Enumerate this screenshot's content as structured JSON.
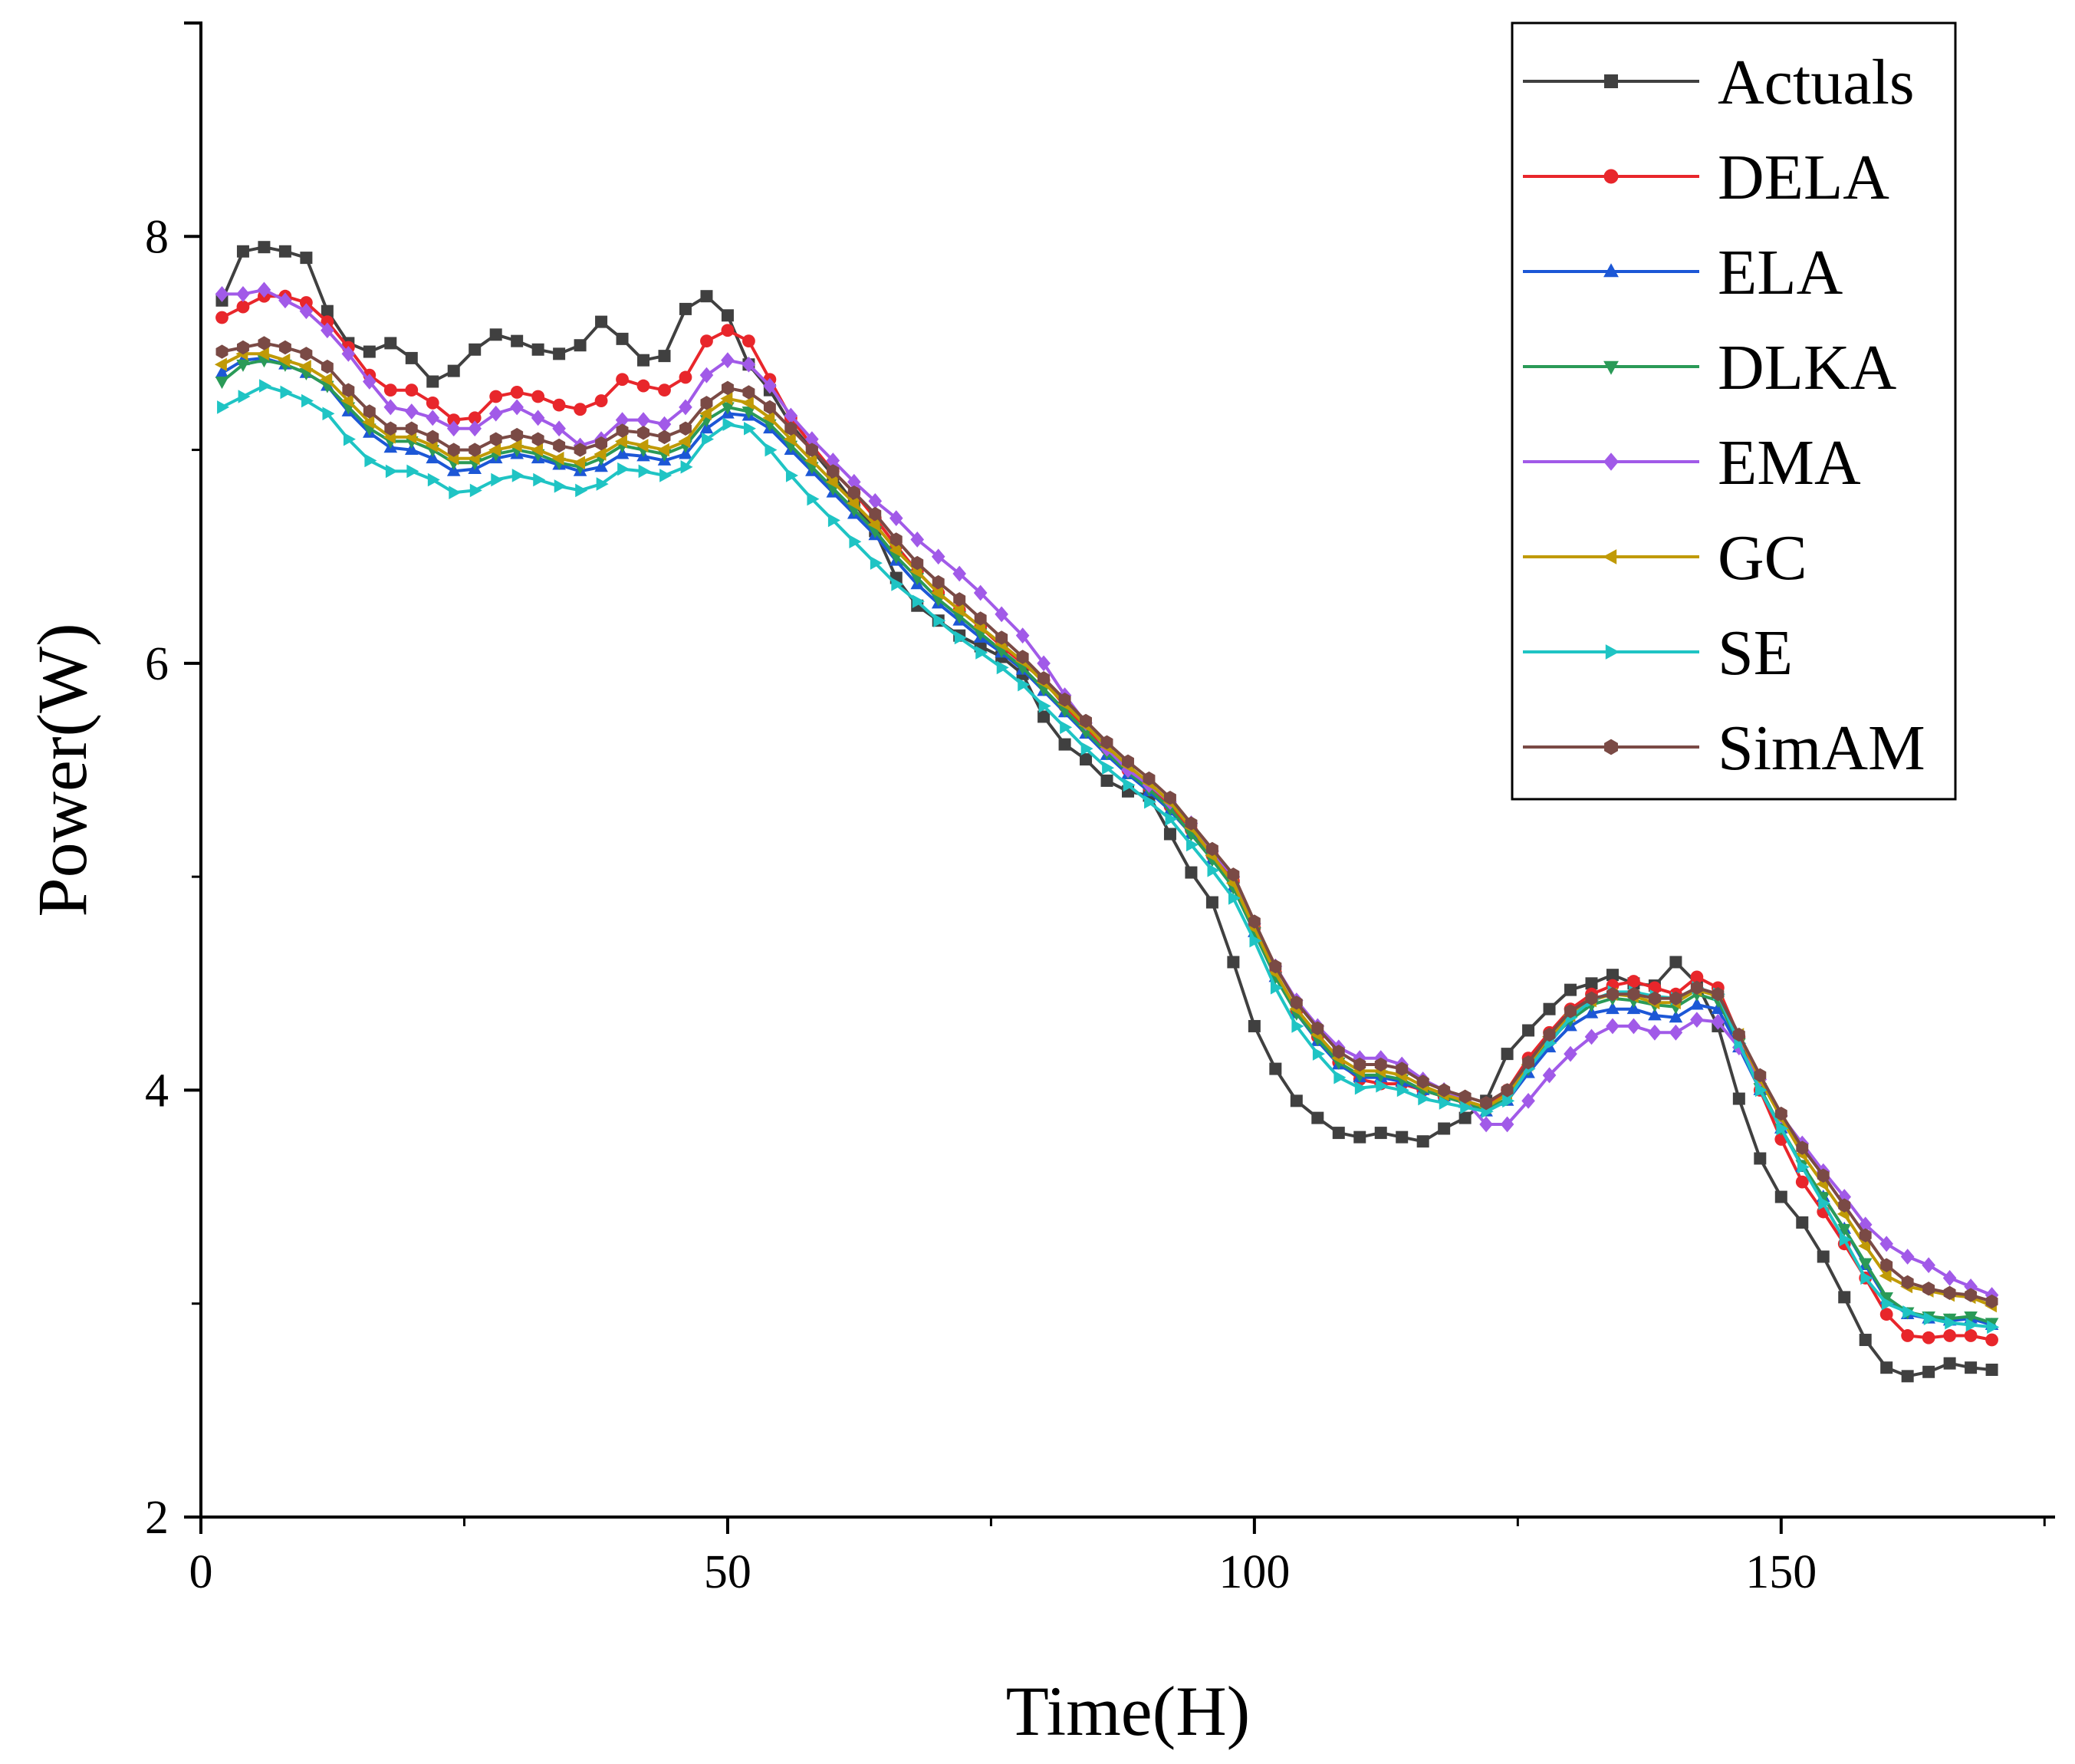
{
  "chart_data": {
    "type": "line",
    "title": "",
    "xlabel": "Time(H)",
    "ylabel": "Power(W)",
    "xlim": [
      0,
      176
    ],
    "ylim": [
      2,
      9
    ],
    "xticks": [
      0,
      50,
      100,
      150
    ],
    "xticks_minor": [
      25,
      75,
      125,
      175
    ],
    "yticks": [
      2,
      4,
      6,
      8
    ],
    "legend_position": "top-right",
    "grid": false,
    "x": [
      2,
      4,
      6,
      8,
      10,
      12,
      14,
      16,
      18,
      20,
      22,
      24,
      26,
      28,
      30,
      32,
      34,
      36,
      38,
      40,
      42,
      44,
      46,
      48,
      50,
      52,
      54,
      56,
      58,
      60,
      62,
      64,
      66,
      68,
      70,
      72,
      74,
      76,
      78,
      80,
      82,
      84,
      86,
      88,
      90,
      92,
      94,
      96,
      98,
      100,
      102,
      104,
      106,
      108,
      110,
      112,
      114,
      116,
      118,
      120,
      122,
      124,
      126,
      128,
      130,
      132,
      134,
      136,
      138,
      140,
      142,
      144,
      146,
      148,
      150,
      152,
      154,
      156,
      158,
      160,
      162,
      164,
      166,
      168,
      170
    ],
    "series": [
      {
        "name": "Actuals",
        "color": "#404040",
        "marker": "square",
        "values": [
          7.7,
          7.93,
          7.95,
          7.93,
          7.9,
          7.65,
          7.5,
          7.46,
          7.5,
          7.43,
          7.32,
          7.37,
          7.47,
          7.54,
          7.51,
          7.47,
          7.45,
          7.49,
          7.6,
          7.52,
          7.42,
          7.44,
          7.66,
          7.72,
          7.63,
          7.4,
          7.28,
          7.12,
          7.0,
          6.88,
          6.75,
          6.62,
          6.4,
          6.27,
          6.2,
          6.13,
          6.08,
          6.03,
          5.95,
          5.75,
          5.62,
          5.55,
          5.45,
          5.4,
          5.38,
          5.2,
          5.02,
          4.88,
          4.6,
          4.3,
          4.1,
          3.95,
          3.87,
          3.8,
          3.78,
          3.8,
          3.78,
          3.76,
          3.82,
          3.87,
          3.95,
          4.17,
          4.28,
          4.38,
          4.47,
          4.5,
          4.54,
          4.5,
          4.49,
          4.6,
          4.5,
          4.3,
          3.96,
          3.68,
          3.5,
          3.38,
          3.22,
          3.03,
          2.83,
          2.7,
          2.66,
          2.68,
          2.72,
          2.7,
          2.69
        ]
      },
      {
        "name": "DELA",
        "color": "#e8262b",
        "marker": "circle",
        "values": [
          7.62,
          7.67,
          7.72,
          7.72,
          7.69,
          7.6,
          7.48,
          7.35,
          7.28,
          7.28,
          7.22,
          7.14,
          7.15,
          7.25,
          7.27,
          7.25,
          7.21,
          7.19,
          7.23,
          7.33,
          7.3,
          7.28,
          7.34,
          7.51,
          7.56,
          7.51,
          7.33,
          7.15,
          7.02,
          6.9,
          6.8,
          6.68,
          6.55,
          6.43,
          6.33,
          6.25,
          6.17,
          6.08,
          6.0,
          5.92,
          5.8,
          5.7,
          5.6,
          5.5,
          5.42,
          5.33,
          5.22,
          5.1,
          4.98,
          4.76,
          4.55,
          4.37,
          4.25,
          4.13,
          4.05,
          4.03,
          4.03,
          4.0,
          3.97,
          3.95,
          3.92,
          4.0,
          4.15,
          4.27,
          4.38,
          4.45,
          4.49,
          4.51,
          4.48,
          4.45,
          4.53,
          4.48,
          4.25,
          4.0,
          3.77,
          3.57,
          3.43,
          3.28,
          3.12,
          2.95,
          2.85,
          2.84,
          2.85,
          2.85,
          2.83
        ]
      },
      {
        "name": "ELA",
        "color": "#1c57d6",
        "marker": "triangle-up",
        "values": [
          7.36,
          7.42,
          7.43,
          7.4,
          7.36,
          7.3,
          7.18,
          7.08,
          7.01,
          7.0,
          6.96,
          6.9,
          6.91,
          6.96,
          6.98,
          6.96,
          6.93,
          6.9,
          6.92,
          6.98,
          6.97,
          6.95,
          6.98,
          7.1,
          7.17,
          7.16,
          7.1,
          7.0,
          6.9,
          6.8,
          6.7,
          6.6,
          6.48,
          6.37,
          6.28,
          6.2,
          6.12,
          6.05,
          5.97,
          5.87,
          5.77,
          5.67,
          5.57,
          5.48,
          5.4,
          5.31,
          5.2,
          5.08,
          4.95,
          4.74,
          4.53,
          4.36,
          4.23,
          4.12,
          4.06,
          4.06,
          4.04,
          4.0,
          3.97,
          3.94,
          3.9,
          3.95,
          4.08,
          4.2,
          4.3,
          4.36,
          4.38,
          4.38,
          4.35,
          4.34,
          4.4,
          4.38,
          4.2,
          4.0,
          3.82,
          3.64,
          3.5,
          3.35,
          3.18,
          3.02,
          2.95,
          2.93,
          2.92,
          2.93,
          2.9
        ]
      },
      {
        "name": "DLKA",
        "color": "#2a9a57",
        "marker": "triangle-down",
        "values": [
          7.32,
          7.4,
          7.42,
          7.4,
          7.36,
          7.3,
          7.2,
          7.1,
          7.04,
          7.04,
          7.0,
          6.94,
          6.94,
          6.98,
          7.0,
          6.98,
          6.94,
          6.92,
          6.96,
          7.02,
          7.0,
          6.98,
          7.02,
          7.14,
          7.2,
          7.18,
          7.12,
          7.02,
          6.92,
          6.82,
          6.72,
          6.62,
          6.5,
          6.4,
          6.3,
          6.22,
          6.14,
          6.06,
          5.98,
          5.88,
          5.78,
          5.68,
          5.58,
          5.49,
          5.41,
          5.32,
          5.2,
          5.08,
          4.95,
          4.74,
          4.53,
          4.36,
          4.24,
          4.13,
          4.07,
          4.07,
          4.05,
          4.0,
          3.97,
          3.94,
          3.91,
          3.96,
          4.1,
          4.23,
          4.33,
          4.4,
          4.43,
          4.42,
          4.4,
          4.39,
          4.45,
          4.42,
          4.22,
          4.01,
          3.82,
          3.65,
          3.5,
          3.35,
          3.19,
          3.03,
          2.96,
          2.94,
          2.93,
          2.94,
          2.91
        ]
      },
      {
        "name": "EMA",
        "color": "#a15ae8",
        "marker": "diamond",
        "values": [
          7.73,
          7.73,
          7.75,
          7.7,
          7.65,
          7.56,
          7.45,
          7.32,
          7.2,
          7.18,
          7.15,
          7.1,
          7.1,
          7.17,
          7.2,
          7.15,
          7.1,
          7.02,
          7.05,
          7.14,
          7.14,
          7.12,
          7.2,
          7.35,
          7.42,
          7.4,
          7.3,
          7.16,
          7.05,
          6.95,
          6.85,
          6.76,
          6.68,
          6.58,
          6.5,
          6.42,
          6.33,
          6.23,
          6.13,
          6.0,
          5.85,
          5.72,
          5.6,
          5.5,
          5.43,
          5.35,
          5.25,
          5.12,
          5.0,
          4.78,
          4.58,
          4.42,
          4.3,
          4.2,
          4.15,
          4.15,
          4.12,
          4.05,
          4.0,
          3.95,
          3.84,
          3.84,
          3.95,
          4.07,
          4.17,
          4.25,
          4.3,
          4.3,
          4.27,
          4.27,
          4.33,
          4.32,
          4.2,
          4.05,
          3.88,
          3.75,
          3.62,
          3.5,
          3.37,
          3.28,
          3.22,
          3.18,
          3.12,
          3.08,
          3.04
        ]
      },
      {
        "name": "GC",
        "color": "#c09a06",
        "marker": "triangle-left",
        "values": [
          7.4,
          7.45,
          7.45,
          7.42,
          7.39,
          7.33,
          7.23,
          7.13,
          7.06,
          7.06,
          7.02,
          6.96,
          6.96,
          7.0,
          7.02,
          7.0,
          6.96,
          6.94,
          6.98,
          7.04,
          7.02,
          7.0,
          7.04,
          7.17,
          7.24,
          7.22,
          7.15,
          7.05,
          6.95,
          6.85,
          6.75,
          6.65,
          6.53,
          6.43,
          6.33,
          6.25,
          6.17,
          6.09,
          6.01,
          5.91,
          5.81,
          5.71,
          5.61,
          5.52,
          5.44,
          5.35,
          5.23,
          5.1,
          4.97,
          4.76,
          4.55,
          4.38,
          4.26,
          4.15,
          4.09,
          4.09,
          4.07,
          4.02,
          3.98,
          3.95,
          3.92,
          3.98,
          4.12,
          4.25,
          4.35,
          4.42,
          4.45,
          4.44,
          4.41,
          4.41,
          4.47,
          4.44,
          4.26,
          4.05,
          3.87,
          3.7,
          3.56,
          3.42,
          3.27,
          3.13,
          3.08,
          3.06,
          3.04,
          3.03,
          2.99
        ]
      },
      {
        "name": "SE",
        "color": "#1fc4c4",
        "marker": "triangle-right",
        "values": [
          7.2,
          7.25,
          7.3,
          7.27,
          7.23,
          7.17,
          7.05,
          6.95,
          6.9,
          6.9,
          6.86,
          6.8,
          6.81,
          6.86,
          6.88,
          6.86,
          6.83,
          6.81,
          6.84,
          6.91,
          6.9,
          6.88,
          6.92,
          7.05,
          7.12,
          7.1,
          7.0,
          6.88,
          6.77,
          6.67,
          6.57,
          6.47,
          6.37,
          6.29,
          6.2,
          6.12,
          6.05,
          5.98,
          5.9,
          5.8,
          5.7,
          5.6,
          5.51,
          5.43,
          5.35,
          5.27,
          5.15,
          5.03,
          4.9,
          4.7,
          4.48,
          4.3,
          4.17,
          4.06,
          4.01,
          4.02,
          4.0,
          3.96,
          3.94,
          3.92,
          3.9,
          3.95,
          4.1,
          4.22,
          4.34,
          4.42,
          4.46,
          4.46,
          4.44,
          4.43,
          4.48,
          4.45,
          4.22,
          4.0,
          3.82,
          3.64,
          3.47,
          3.3,
          3.12,
          3.0,
          2.96,
          2.93,
          2.91,
          2.9,
          2.89
        ]
      },
      {
        "name": "SimAM",
        "color": "#7a4a45",
        "marker": "hexagon",
        "values": [
          7.46,
          7.48,
          7.5,
          7.48,
          7.45,
          7.39,
          7.28,
          7.18,
          7.1,
          7.1,
          7.06,
          7.0,
          7.0,
          7.05,
          7.07,
          7.05,
          7.02,
          7.0,
          7.03,
          7.09,
          7.08,
          7.06,
          7.1,
          7.22,
          7.29,
          7.27,
          7.2,
          7.1,
          7.0,
          6.9,
          6.8,
          6.7,
          6.58,
          6.47,
          6.38,
          6.3,
          6.21,
          6.12,
          6.03,
          5.93,
          5.83,
          5.73,
          5.63,
          5.54,
          5.46,
          5.37,
          5.25,
          5.13,
          5.01,
          4.79,
          4.58,
          4.41,
          4.29,
          4.18,
          4.12,
          4.12,
          4.1,
          4.04,
          4.0,
          3.97,
          3.94,
          4.0,
          4.13,
          4.26,
          4.37,
          4.43,
          4.45,
          4.45,
          4.43,
          4.43,
          4.48,
          4.45,
          4.26,
          4.07,
          3.89,
          3.73,
          3.6,
          3.46,
          3.32,
          3.18,
          3.1,
          3.07,
          3.05,
          3.04,
          3.01
        ]
      }
    ]
  }
}
